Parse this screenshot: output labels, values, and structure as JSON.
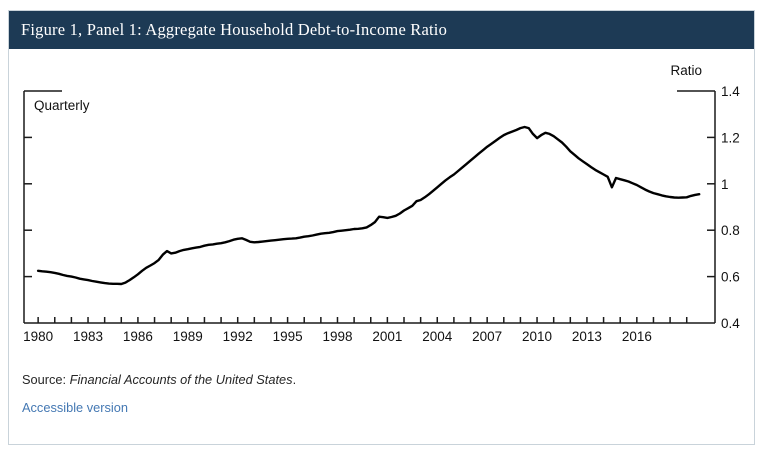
{
  "header": {
    "title": "Figure 1, Panel 1: Aggregate Household Debt-to-Income Ratio",
    "bar_color": "#1d3a55"
  },
  "chart_data": {
    "type": "line",
    "title": "Aggregate Household Debt-to-Income Ratio",
    "frequency_label": "Quarterly",
    "ylabel": "Ratio",
    "xlabel": "",
    "grid": false,
    "legend": "none",
    "ylim": [
      0.4,
      1.4
    ],
    "xlim": [
      1979.15,
      2020.7
    ],
    "y_ticks": [
      0.4,
      0.6,
      0.8,
      1.0,
      1.2,
      1.4
    ],
    "y_tick_labels": [
      "0.4",
      "0.6",
      "0.8",
      "1",
      "1.2",
      "1.4"
    ],
    "x_tick_year_start": 1980,
    "x_tick_year_end": 2019,
    "x_label_years": [
      1980,
      1983,
      1986,
      1989,
      1992,
      1995,
      1998,
      2001,
      2004,
      2007,
      2010,
      2013,
      2016
    ],
    "line_color": "#000000",
    "axis_color": "#1a1a1a",
    "series": [
      {
        "name": "Household debt-to-income ratio",
        "x_start": 1980,
        "x_step": 0.25,
        "values": [
          0.625,
          0.623,
          0.621,
          0.619,
          0.616,
          0.612,
          0.607,
          0.603,
          0.6,
          0.596,
          0.591,
          0.588,
          0.585,
          0.581,
          0.578,
          0.575,
          0.572,
          0.57,
          0.569,
          0.569,
          0.568,
          0.574,
          0.585,
          0.597,
          0.61,
          0.625,
          0.638,
          0.648,
          0.658,
          0.672,
          0.695,
          0.71,
          0.7,
          0.703,
          0.71,
          0.715,
          0.718,
          0.722,
          0.725,
          0.728,
          0.733,
          0.737,
          0.739,
          0.742,
          0.744,
          0.748,
          0.753,
          0.759,
          0.763,
          0.765,
          0.758,
          0.75,
          0.748,
          0.749,
          0.751,
          0.753,
          0.755,
          0.757,
          0.759,
          0.761,
          0.763,
          0.764,
          0.765,
          0.768,
          0.772,
          0.774,
          0.777,
          0.781,
          0.785,
          0.787,
          0.789,
          0.792,
          0.796,
          0.798,
          0.8,
          0.802,
          0.805,
          0.806,
          0.808,
          0.812,
          0.822,
          0.835,
          0.858,
          0.856,
          0.853,
          0.857,
          0.862,
          0.872,
          0.885,
          0.895,
          0.905,
          0.925,
          0.93,
          0.942,
          0.955,
          0.97,
          0.985,
          1.0,
          1.015,
          1.028,
          1.04,
          1.055,
          1.07,
          1.085,
          1.1,
          1.115,
          1.13,
          1.145,
          1.16,
          1.172,
          1.185,
          1.198,
          1.21,
          1.218,
          1.225,
          1.232,
          1.24,
          1.245,
          1.24,
          1.215,
          1.197,
          1.21,
          1.22,
          1.215,
          1.205,
          1.192,
          1.178,
          1.16,
          1.14,
          1.125,
          1.11,
          1.097,
          1.085,
          1.072,
          1.06,
          1.05,
          1.04,
          1.03,
          0.985,
          1.025,
          1.02,
          1.015,
          1.01,
          1.002,
          0.995,
          0.985,
          0.975,
          0.967,
          0.96,
          0.955,
          0.95,
          0.946,
          0.943,
          0.941,
          0.94,
          0.941,
          0.942,
          0.948,
          0.952,
          0.955
        ]
      }
    ]
  },
  "footer": {
    "source_prefix": "Source: ",
    "source_text": "Financial Accounts of the United States",
    "source_suffix": ".",
    "accessible_link": "Accessible version",
    "link_color": "#4478b3"
  }
}
